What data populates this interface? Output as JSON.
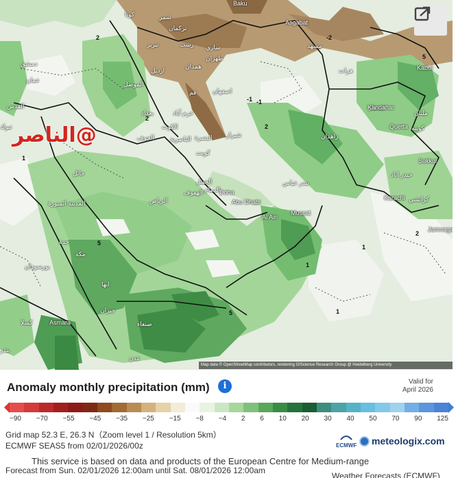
{
  "map": {
    "watermark": "@الناصر",
    "attribution": "Map data © OpenStreetMap contributors, rendering GIScience Research Group @ Heidelberg University",
    "cities_ar": [
      {
        "name": "كوتا"
      },
      {
        "name": "شمر"
      },
      {
        "name": "تركمان"
      },
      {
        "name": "مشهد"
      },
      {
        "name": "ساري"
      },
      {
        "name": "رشت"
      },
      {
        "name": "طهران"
      },
      {
        "name": "تبريز"
      },
      {
        "name": "ارديل"
      },
      {
        "name": "همدان"
      },
      {
        "name": "اصفهان"
      },
      {
        "name": "قم"
      },
      {
        "name": "خرم آباد"
      },
      {
        "name": "الموصل"
      },
      {
        "name": "بغداد"
      },
      {
        "name": "الكوت"
      },
      {
        "name": "الناصرية"
      },
      {
        "name": "البصرة"
      },
      {
        "name": "كويت"
      },
      {
        "name": "شيراز"
      },
      {
        "name": "بندر عباس"
      },
      {
        "name": "دمشق"
      },
      {
        "name": "عمان"
      },
      {
        "name": "القدس"
      },
      {
        "name": "الرياض"
      },
      {
        "name": "الهفوف"
      },
      {
        "name": "الجبيل"
      },
      {
        "name": "الدمام"
      },
      {
        "name": "المدينة المنورة"
      },
      {
        "name": "جدة"
      },
      {
        "name": "مكة"
      },
      {
        "name": "ابها"
      },
      {
        "name": "جيزان"
      },
      {
        "name": "صنعاء"
      },
      {
        "name": "عدن"
      },
      {
        "name": "بورسودان"
      },
      {
        "name": "كسلا"
      },
      {
        "name": "قندهار"
      },
      {
        "name": "زاهدان"
      },
      {
        "name": "هرات"
      },
      {
        "name": "كويته"
      },
      {
        "name": "ملتان"
      },
      {
        "name": "كراتشي"
      },
      {
        "name": "حيدر اباد"
      },
      {
        "name": "بندر"
      },
      {
        "name": "حائل"
      },
      {
        "name": "تبوك"
      },
      {
        "name": "الجوف"
      }
    ],
    "cities_en": [
      "Baku",
      "Asgabat",
      "Kabul",
      "Kandahar",
      "Quetta",
      "Sukkur",
      "Karachi",
      "Jamnagar",
      "Doha",
      "Abu Dhabi",
      "Al Ain",
      "Muscat",
      "Asmara"
    ],
    "contour_labels": [
      "-2",
      "-1",
      "1",
      "2",
      "5"
    ]
  },
  "legend": {
    "title": "Anomaly monthly precipitation (mm)",
    "info": "i",
    "valid_for_label": "Valid for",
    "valid_for_value": "April 2026",
    "ticks": [
      "−90",
      "−70",
      "−55",
      "−45",
      "−35",
      "−25",
      "−15",
      "−8",
      "−4",
      "2",
      "6",
      "10",
      "20",
      "30",
      "40",
      "50",
      "70",
      "90",
      "125"
    ],
    "colors": [
      "#e74c4c",
      "#d33a3a",
      "#bb2a2a",
      "#a21f1f",
      "#8c1b18",
      "#7d2a14",
      "#8f4a1e",
      "#a26b35",
      "#b98c54",
      "#d4b27f",
      "#e6d2a9",
      "#f2ecd8",
      "#fafafa",
      "#e8f4e0",
      "#cbe7c2",
      "#a6d79c",
      "#7fc17a",
      "#58a75a",
      "#398c45",
      "#24733a",
      "#1a5d33",
      "#3c8d7f",
      "#4ba3a8",
      "#55b3c8",
      "#68bfe0",
      "#84c9ea",
      "#9fd2ef",
      "#74aee6",
      "#5b95dd",
      "#4a84d6"
    ]
  },
  "info": {
    "grid": "Grid map 52.3 E, 26.3 N（Zoom level 1 / Resolution 5km）",
    "run": "ECMWF SEAS5 from 02/01/2026/00z",
    "ecmwf": "ECMWF",
    "brand": "meteologix.com",
    "disclaimer": "This service is based on data and products of the European Centre for Medium-range",
    "forecast": "Forecast from Sun. 02/01/2026 12:00am until Sat. 08/01/2026 12:00am",
    "weather": "Weather Forecasts (ECMWF)"
  }
}
